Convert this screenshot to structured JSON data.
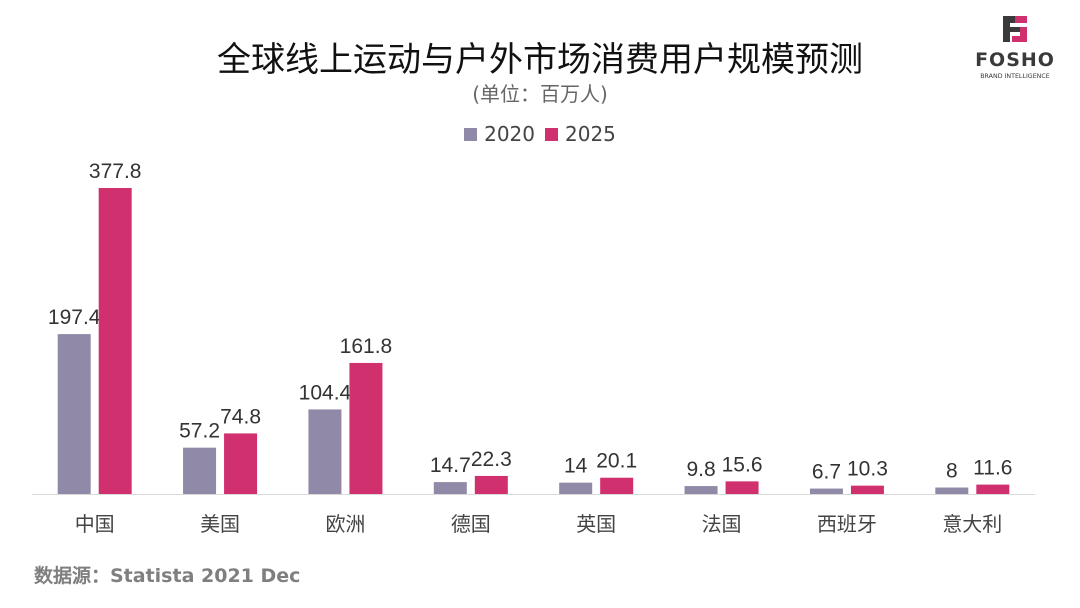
{
  "chart_data": {
    "type": "bar",
    "title": "全球线上运动与户外市场消费用户规模预测",
    "subtitle": "(单位：百万人)",
    "categories": [
      "中国",
      "美国",
      "欧洲",
      "德国",
      "英国",
      "法国",
      "西班牙",
      "意大利"
    ],
    "series": [
      {
        "name": "2020",
        "color": "#9089a8",
        "values": [
          197.4,
          57.2,
          104.4,
          14.7,
          14,
          9.8,
          6.7,
          8
        ]
      },
      {
        "name": "2025",
        "color": "#d1306f",
        "values": [
          377.8,
          74.8,
          161.8,
          22.3,
          20.1,
          15.6,
          10.3,
          11.6
        ]
      }
    ],
    "ylim": [
      0,
      400
    ],
    "grid": false,
    "legend": "top",
    "data_labels": true
  },
  "source": "数据源：Statista 2021 Dec",
  "logo": {
    "text": "FOSHO",
    "tagline": "BRAND INTELLIGENCE",
    "colors": [
      "#3a3a3a",
      "#d1306f"
    ]
  }
}
